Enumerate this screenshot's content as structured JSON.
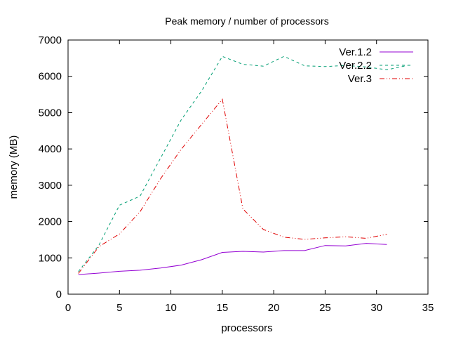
{
  "chart_data": {
    "type": "line",
    "title": "Peak memory / number of processors",
    "xlabel": "processors",
    "ylabel": "memory (MB)",
    "xlim": [
      0,
      35
    ],
    "ylim": [
      0,
      7000
    ],
    "xticks": [
      0,
      5,
      10,
      15,
      20,
      25,
      30,
      35
    ],
    "yticks": [
      0,
      1000,
      2000,
      3000,
      4000,
      5000,
      6000,
      7000
    ],
    "grid": false,
    "legend_position": "top-right",
    "series": [
      {
        "name": "Ver.1.2",
        "color": "#9400d3",
        "style": "solid",
        "points": [
          [
            1,
            540
          ],
          [
            3,
            580
          ],
          [
            5,
            630
          ],
          [
            7,
            660
          ],
          [
            9,
            720
          ],
          [
            11,
            800
          ],
          [
            13,
            950
          ],
          [
            15,
            1150
          ],
          [
            17,
            1180
          ],
          [
            19,
            1160
          ],
          [
            21,
            1200
          ],
          [
            23,
            1200
          ],
          [
            25,
            1340
          ],
          [
            27,
            1330
          ],
          [
            29,
            1400
          ],
          [
            31,
            1370
          ]
        ]
      },
      {
        "name": "Ver.2.2",
        "color": "#009e73",
        "style": "dashed",
        "points": [
          [
            1,
            620
          ],
          [
            3,
            1350
          ],
          [
            5,
            2450
          ],
          [
            7,
            2700
          ],
          [
            9,
            3750
          ],
          [
            11,
            4800
          ],
          [
            13,
            5600
          ],
          [
            15,
            6550
          ],
          [
            17,
            6330
          ],
          [
            19,
            6280
          ],
          [
            21,
            6550
          ],
          [
            23,
            6290
          ],
          [
            25,
            6270
          ],
          [
            27,
            6300
          ],
          [
            29,
            6260
          ],
          [
            31,
            6180
          ],
          [
            33,
            6300
          ]
        ]
      },
      {
        "name": "Ver.3",
        "color": "#e00000",
        "style": "dash-dot-dot",
        "points": [
          [
            1,
            570
          ],
          [
            3,
            1310
          ],
          [
            5,
            1660
          ],
          [
            7,
            2270
          ],
          [
            9,
            3180
          ],
          [
            11,
            3990
          ],
          [
            13,
            4680
          ],
          [
            15,
            5370
          ],
          [
            17,
            2350
          ],
          [
            19,
            1780
          ],
          [
            21,
            1570
          ],
          [
            23,
            1510
          ],
          [
            25,
            1550
          ],
          [
            27,
            1580
          ],
          [
            29,
            1540
          ],
          [
            31,
            1650
          ]
        ]
      }
    ]
  }
}
